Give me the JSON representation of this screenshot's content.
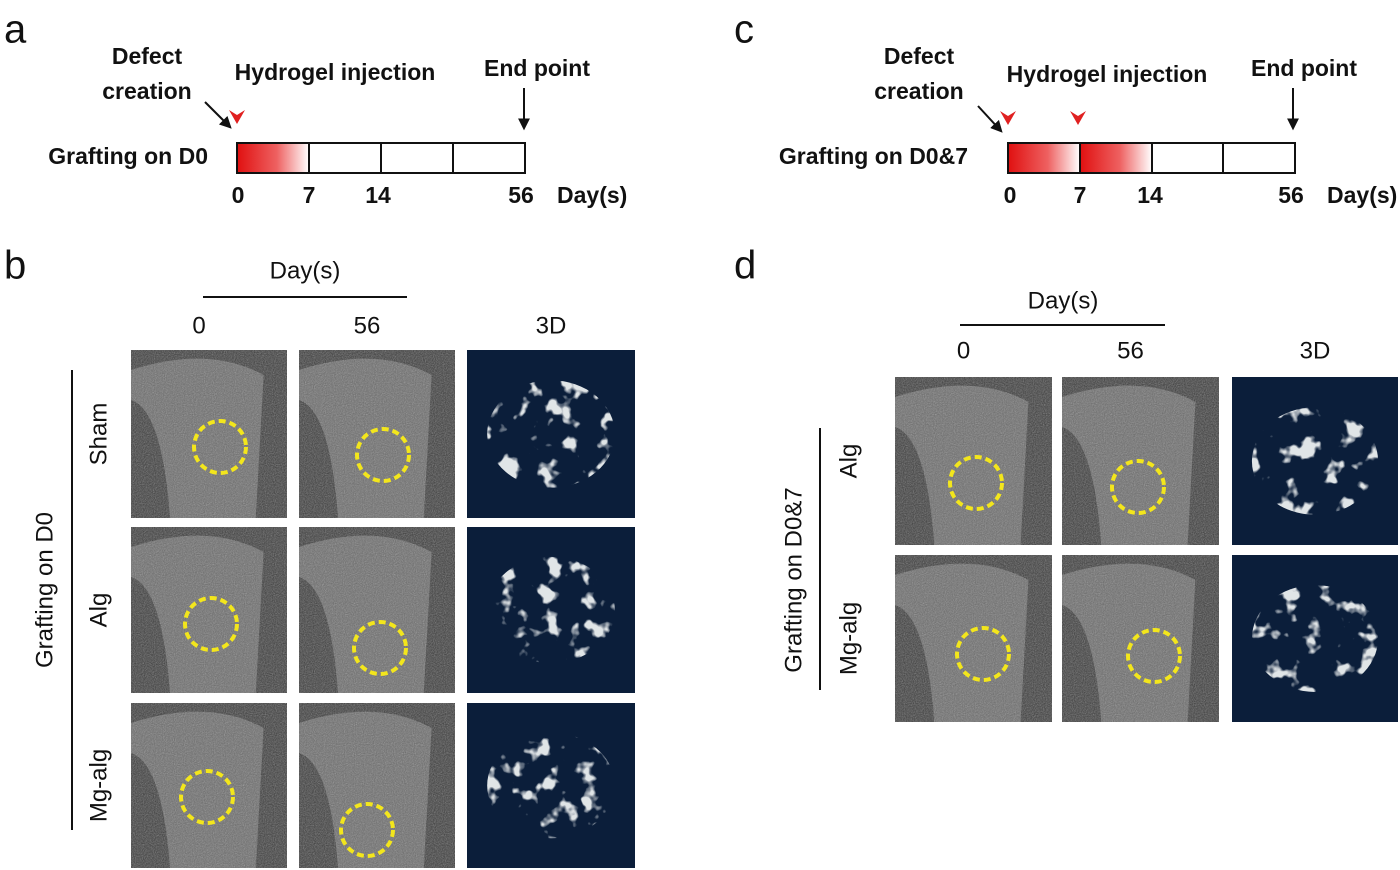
{
  "panel_a": {
    "letter": "a",
    "defect_label": [
      "Defect",
      "creation"
    ],
    "injection_label": "Hydrogel injection",
    "end_label": "End point",
    "row_label": "Grafting on D0",
    "day_ticks": [
      "0",
      "7",
      "14",
      "56"
    ],
    "axis_label": "Day(s)"
  },
  "panel_b": {
    "letter": "b",
    "header": "Day(s)",
    "columns": [
      "0",
      "56",
      "3D"
    ],
    "group_label": "Grafting on D0",
    "rows": [
      "Sham",
      "Alg",
      "Mg-alg"
    ]
  },
  "panel_c": {
    "letter": "c",
    "defect_label": [
      "Defect",
      "creation"
    ],
    "injection_label": "Hydrogel injection",
    "end_label": "End point",
    "row_label": "Grafting on D0&7",
    "day_ticks": [
      "0",
      "7",
      "14",
      "56"
    ],
    "axis_label": "Day(s)"
  },
  "panel_d": {
    "letter": "d",
    "header": "Day(s)",
    "columns": [
      "0",
      "56",
      "3D"
    ],
    "group_label": "Grafting on D0&7",
    "rows": [
      "Alg",
      "Mg-alg"
    ]
  }
}
